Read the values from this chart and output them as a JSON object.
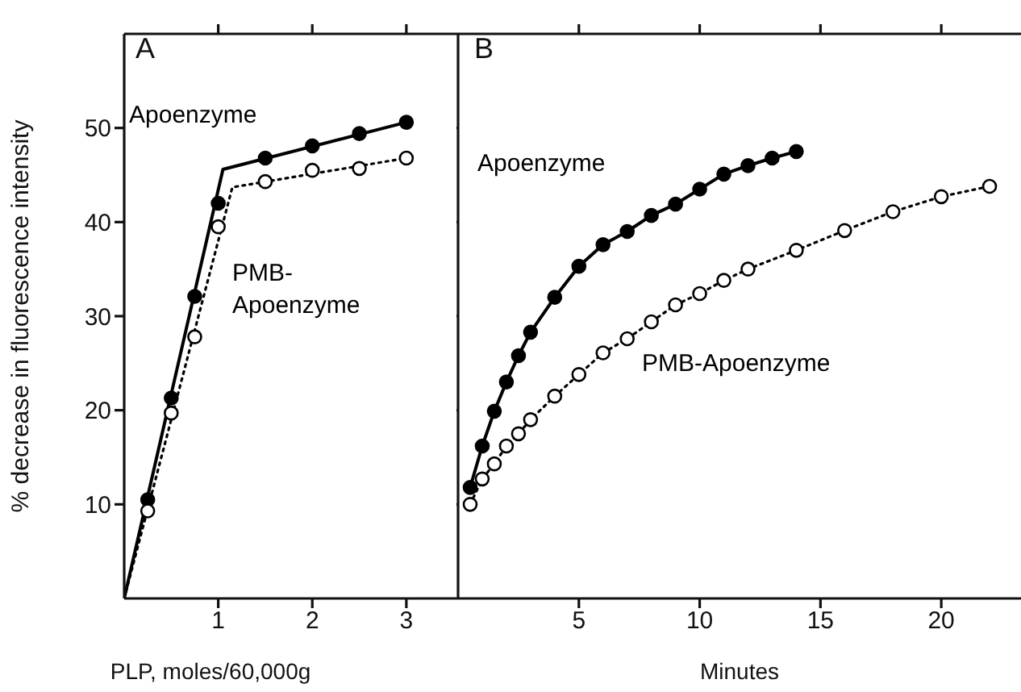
{
  "chart_data": [
    {
      "type": "scatter",
      "xlabel": "PLP, moles/60,000g",
      "ylabel": "% decrease in fluorescence intensity",
      "annotations": [
        "A"
      ],
      "xlim": [
        0,
        3.55
      ],
      "ylim": [
        0,
        60
      ],
      "xticks": [
        1,
        2,
        3
      ],
      "yticks": [
        10,
        20,
        30,
        40,
        50
      ],
      "series": [
        {
          "name": "Apoenzyme",
          "type": "scatter",
          "color": "#000000",
          "line_style": "solid",
          "x": [
            0.25,
            0.5,
            0.75,
            1,
            1.5,
            2,
            2.5,
            3
          ],
          "values": [
            10.5,
            21.3,
            32.1,
            42,
            46.8,
            48.1,
            49.4,
            50.6
          ]
        },
        {
          "type": "line",
          "color": "#000000",
          "line_style": "solid",
          "x": [
            0,
            1.05,
            3
          ],
          "values": [
            0,
            45.6,
            50.6
          ]
        },
        {
          "name": "PMB-Apoenzyme",
          "type": "scatter",
          "color": "#000000",
          "line_style": "dotted",
          "x": [
            0.25,
            0.5,
            0.75,
            1,
            1.5,
            2,
            2.5,
            3
          ],
          "values": [
            9.3,
            19.7,
            27.8,
            39.5,
            44.3,
            45.5,
            45.7,
            46.8
          ]
        },
        {
          "type": "line",
          "color": "#000000",
          "line_style": "dotted",
          "x": [
            0,
            1.15,
            3
          ],
          "values": [
            0,
            43.7,
            46.8
          ]
        }
      ]
    },
    {
      "type": "line",
      "xlabel": "Minutes",
      "annotations": [
        "B"
      ],
      "xlim": [
        0,
        23.3
      ],
      "ylim": [
        0,
        60
      ],
      "xticks": [
        5,
        10,
        15,
        20
      ],
      "yticks": [
        10,
        20,
        30,
        40,
        50
      ],
      "tick_labels": "x",
      "marker": "circle",
      "series": [
        {
          "name": "Apoenzyme",
          "color": "#000000",
          "line_style": "solid",
          "x": [
            0.5,
            1,
            1.5,
            2,
            2.5,
            3,
            4,
            5,
            6,
            7,
            8,
            9,
            10,
            11,
            12,
            13,
            14
          ],
          "values": [
            11.8,
            16.2,
            19.9,
            23.0,
            25.8,
            28.3,
            32.0,
            35.3,
            37.6,
            39.0,
            40.7,
            41.9,
            43.5,
            45.1,
            46.0,
            46.8,
            47.5
          ]
        },
        {
          "name": "PMB-Apoenzyme",
          "color": "#000000",
          "line_style": "dotted",
          "x": [
            0.5,
            1,
            1.5,
            2,
            2.5,
            3,
            4,
            5,
            6,
            7,
            8,
            9,
            10,
            11,
            12,
            14,
            16,
            18,
            20,
            22
          ],
          "values": [
            10.0,
            12.7,
            14.3,
            16.2,
            17.5,
            19.0,
            21.5,
            23.8,
            26.1,
            27.6,
            29.4,
            31.2,
            32.4,
            33.8,
            35.0,
            37.0,
            39.1,
            41.1,
            42.7,
            43.8
          ]
        }
      ]
    }
  ]
}
